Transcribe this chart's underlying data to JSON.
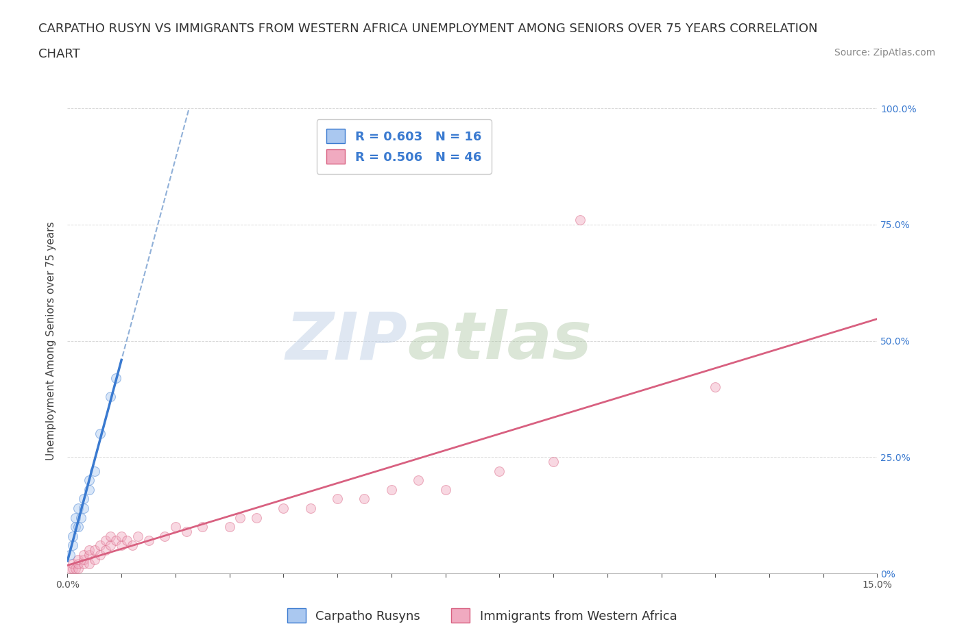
{
  "title_line1": "CARPATHO RUSYN VS IMMIGRANTS FROM WESTERN AFRICA UNEMPLOYMENT AMONG SENIORS OVER 75 YEARS CORRELATION",
  "title_line2": "CHART",
  "source_text": "Source: ZipAtlas.com",
  "ylabel": "Unemployment Among Seniors over 75 years",
  "watermark_zip": "ZIP",
  "watermark_atlas": "atlas",
  "legend_entries": [
    {
      "label": "R = 0.603   N = 16",
      "color": "#aac8f0"
    },
    {
      "label": "R = 0.506   N = 46",
      "color": "#f0a8c0"
    }
  ],
  "legend_label_blue": "Carpatho Rusyns",
  "legend_label_pink": "Immigrants from Western Africa",
  "xlim": [
    0.0,
    0.15
  ],
  "ylim": [
    0.0,
    1.0
  ],
  "background_color": "#ffffff",
  "grid_color": "#d8d8d8",
  "blue_scatter_color": "#aac8f0",
  "pink_scatter_color": "#f0aac0",
  "blue_line_color": "#3a7ad0",
  "pink_line_color": "#d86080",
  "dashed_line_color": "#90b0d8",
  "blue_points": [
    [
      0.0005,
      0.04
    ],
    [
      0.001,
      0.06
    ],
    [
      0.001,
      0.08
    ],
    [
      0.0015,
      0.1
    ],
    [
      0.0015,
      0.12
    ],
    [
      0.002,
      0.1
    ],
    [
      0.002,
      0.14
    ],
    [
      0.0025,
      0.12
    ],
    [
      0.003,
      0.14
    ],
    [
      0.003,
      0.16
    ],
    [
      0.004,
      0.18
    ],
    [
      0.004,
      0.2
    ],
    [
      0.005,
      0.22
    ],
    [
      0.006,
      0.3
    ],
    [
      0.008,
      0.38
    ],
    [
      0.009,
      0.42
    ]
  ],
  "pink_points": [
    [
      0.0005,
      0.01
    ],
    [
      0.001,
      0.01
    ],
    [
      0.001,
      0.02
    ],
    [
      0.0015,
      0.01
    ],
    [
      0.002,
      0.01
    ],
    [
      0.002,
      0.02
    ],
    [
      0.002,
      0.03
    ],
    [
      0.003,
      0.02
    ],
    [
      0.003,
      0.03
    ],
    [
      0.003,
      0.04
    ],
    [
      0.004,
      0.02
    ],
    [
      0.004,
      0.04
    ],
    [
      0.004,
      0.05
    ],
    [
      0.005,
      0.03
    ],
    [
      0.005,
      0.05
    ],
    [
      0.006,
      0.04
    ],
    [
      0.006,
      0.06
    ],
    [
      0.007,
      0.05
    ],
    [
      0.007,
      0.07
    ],
    [
      0.008,
      0.06
    ],
    [
      0.008,
      0.08
    ],
    [
      0.009,
      0.07
    ],
    [
      0.01,
      0.06
    ],
    [
      0.01,
      0.08
    ],
    [
      0.011,
      0.07
    ],
    [
      0.012,
      0.06
    ],
    [
      0.013,
      0.08
    ],
    [
      0.015,
      0.07
    ],
    [
      0.018,
      0.08
    ],
    [
      0.02,
      0.1
    ],
    [
      0.022,
      0.09
    ],
    [
      0.025,
      0.1
    ],
    [
      0.03,
      0.1
    ],
    [
      0.032,
      0.12
    ],
    [
      0.035,
      0.12
    ],
    [
      0.04,
      0.14
    ],
    [
      0.045,
      0.14
    ],
    [
      0.05,
      0.16
    ],
    [
      0.055,
      0.16
    ],
    [
      0.06,
      0.18
    ],
    [
      0.065,
      0.2
    ],
    [
      0.07,
      0.18
    ],
    [
      0.08,
      0.22
    ],
    [
      0.09,
      0.24
    ],
    [
      0.095,
      0.76
    ],
    [
      0.12,
      0.4
    ]
  ],
  "title_fontsize": 13,
  "source_fontsize": 10,
  "axis_label_fontsize": 11,
  "tick_fontsize": 10,
  "legend_fontsize": 13,
  "scatter_size": 100,
  "scatter_alpha": 0.45,
  "scatter_linewidth": 0.8,
  "blue_line_xmax": 0.01,
  "dashed_line_xmax": 0.15,
  "pink_line_xmax": 0.15
}
